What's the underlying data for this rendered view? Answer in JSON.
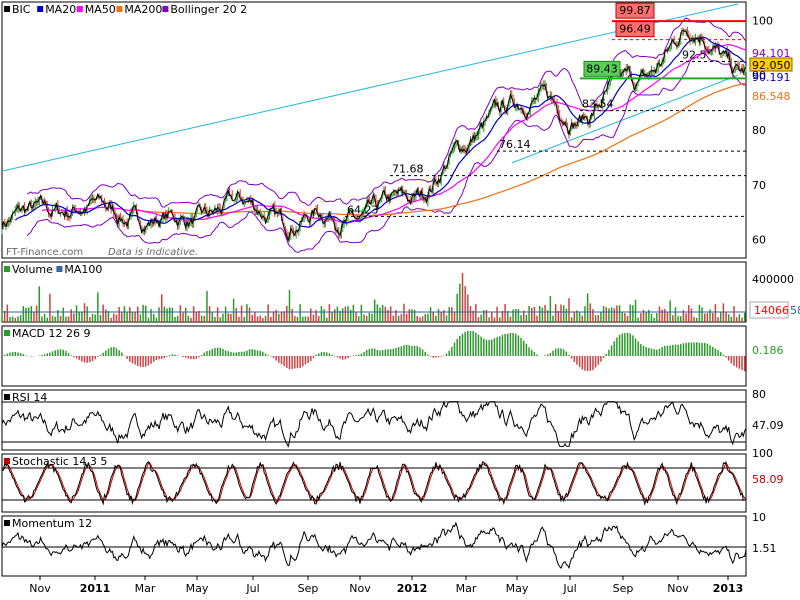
{
  "symbol": "BIC",
  "watermark": "FT-Finance.com",
  "watermark_note": "Data is Indicative.",
  "time_axis": [
    "Nov",
    "2011",
    "Mar",
    "May",
    "Jul",
    "Sep",
    "Nov",
    "2012",
    "Mar",
    "May",
    "Jul",
    "Sep",
    "Nov",
    "2013"
  ],
  "colors": {
    "ma20": "#0000cc",
    "ma50": "#ff00ff",
    "ma200": "#f07010",
    "bollinger": "#8000c0",
    "trend_cyan": "#20b8e0",
    "res_red": "#ff0000",
    "sup_green": "#22aa22",
    "up": "#2a9a2a",
    "down": "#d04040",
    "volume_ma": "#336699"
  },
  "panels": {
    "price": {
      "legend": [
        {
          "label": "BIC",
          "color": "#000000"
        },
        {
          "label": "MA20",
          "color": "#0000cc"
        },
        {
          "label": "MA50",
          "color": "#ff00ff"
        },
        {
          "label": "MA200",
          "color": "#f07010"
        },
        {
          "label": "Bollinger 20 2",
          "color": "#8000c0"
        }
      ],
      "y_ticks": [
        "100",
        "90",
        "80",
        "70",
        "60"
      ],
      "levels": [
        "99.87",
        "96.49",
        "92.5",
        "89.43",
        "83.54",
        "76.14",
        "71.68",
        "64.23"
      ],
      "side_labels": [
        {
          "text": "94.101",
          "color": "#8000c0"
        },
        {
          "text": "92.050",
          "color": "#000000",
          "bg": "#ffcc00"
        },
        {
          "text": "90.191",
          "color": "#0000cc"
        },
        {
          "text": "86.548",
          "color": "#f07010"
        }
      ]
    },
    "volume": {
      "legend": [
        {
          "label": "Volume",
          "color": "#2a9a2a"
        },
        {
          "label": "MA100",
          "color": "#336699"
        }
      ],
      "y_ticks": [
        "400000"
      ],
      "value": "14066",
      "value_ma": "58"
    },
    "macd": {
      "legend": [
        {
          "label": "MACD 12 26 9",
          "color": "#2a9a2a"
        }
      ],
      "value": "0.186"
    },
    "rsi": {
      "legend": [
        {
          "label": "RSI 14",
          "color": "#000000"
        }
      ],
      "y_ticks": [
        "80"
      ],
      "value": "47.09"
    },
    "stochastic": {
      "legend": [
        {
          "label": "Stochastic 14 3 5",
          "color": "#c00000"
        }
      ],
      "y_ticks": [
        "100"
      ],
      "value": "58.09"
    },
    "momentum": {
      "legend": [
        {
          "label": "Momentum 12",
          "color": "#000000"
        }
      ],
      "y_ticks": [
        "10"
      ],
      "value": "1.51"
    }
  },
  "chart_data": {
    "type": "line",
    "title": "BIC",
    "ylim": [
      57,
      103
    ],
    "series": [
      {
        "name": "BIC",
        "x": [
          "Nov",
          "2011",
          "Mar",
          "May",
          "Jul",
          "Sep",
          "Nov",
          "2012",
          "Mar",
          "May",
          "Jul",
          "Sep",
          "Nov",
          "2013"
        ],
        "values": [
          63,
          66,
          65,
          63,
          66,
          64,
          64,
          66,
          76,
          86,
          83,
          88,
          98,
          91
        ]
      }
    ]
  }
}
